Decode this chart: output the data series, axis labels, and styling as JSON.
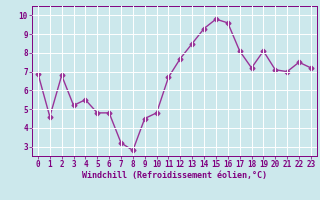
{
  "x": [
    0,
    1,
    2,
    3,
    4,
    5,
    6,
    7,
    8,
    9,
    10,
    11,
    12,
    13,
    14,
    15,
    16,
    17,
    18,
    19,
    20,
    21,
    22,
    23
  ],
  "y": [
    6.9,
    4.6,
    6.8,
    5.2,
    5.5,
    4.8,
    4.8,
    3.2,
    2.8,
    4.5,
    4.8,
    6.7,
    7.7,
    8.5,
    9.3,
    9.8,
    9.6,
    8.1,
    7.2,
    8.1,
    7.1,
    7.0,
    7.5,
    7.2
  ],
  "line_color": "#993399",
  "marker": "D",
  "markersize": 2.5,
  "linewidth": 1.0,
  "xlabel": "Windchill (Refroidissement éolien,°C)",
  "xlim": [
    -0.5,
    23.5
  ],
  "ylim": [
    2.5,
    10.5
  ],
  "yticks": [
    3,
    4,
    5,
    6,
    7,
    8,
    9,
    10
  ],
  "xticks": [
    0,
    1,
    2,
    3,
    4,
    5,
    6,
    7,
    8,
    9,
    10,
    11,
    12,
    13,
    14,
    15,
    16,
    17,
    18,
    19,
    20,
    21,
    22,
    23
  ],
  "bg_color": "#cce8ec",
  "grid_color": "#ffffff",
  "tick_color": "#800080",
  "label_color": "#800080",
  "tick_fontsize": 5.5,
  "xlabel_fontsize": 6.0
}
